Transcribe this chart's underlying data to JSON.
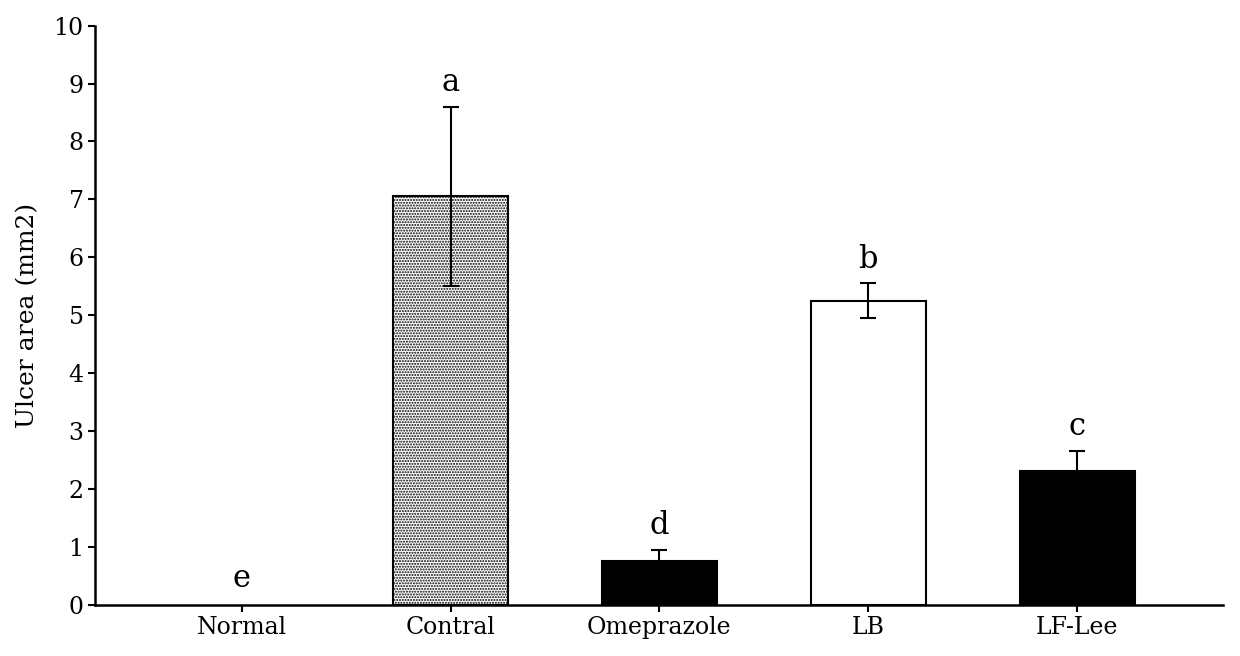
{
  "categories": [
    "Normal",
    "Contral",
    "Omeprazole",
    "LB",
    "LF-Lee"
  ],
  "values": [
    0.0,
    7.05,
    0.75,
    5.25,
    2.3
  ],
  "errors": [
    0.0,
    1.55,
    0.2,
    0.3,
    0.35
  ],
  "letters": [
    "e",
    "a",
    "d",
    "b",
    "c"
  ],
  "bar_styles": [
    "none",
    "dotted",
    "black",
    "white",
    "black"
  ],
  "ylabel": "Ulcer area (mm2)",
  "ylim": [
    0,
    10
  ],
  "yticks": [
    0,
    1,
    2,
    3,
    4,
    5,
    6,
    7,
    8,
    9,
    10
  ],
  "background_color": "#ffffff",
  "bar_width": 0.55,
  "font_size": 18,
  "tick_font_size": 17,
  "letter_font_size": 22
}
